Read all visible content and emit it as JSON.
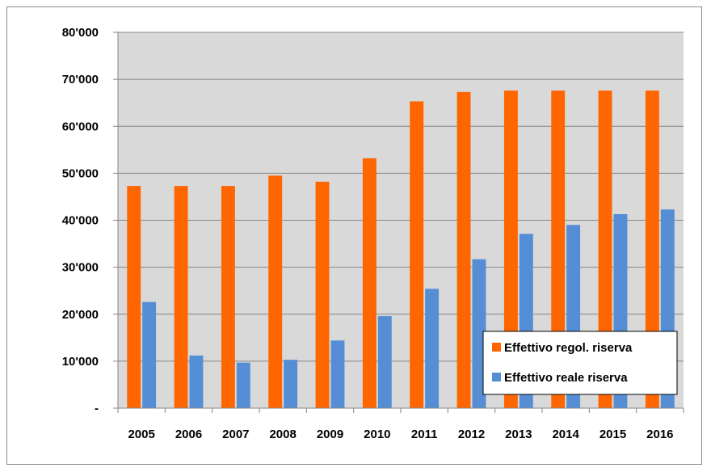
{
  "chart_data": {
    "type": "bar",
    "categories": [
      "2005",
      "2006",
      "2007",
      "2008",
      "2009",
      "2010",
      "2011",
      "2012",
      "2013",
      "2014",
      "2015",
      "2016"
    ],
    "series": [
      {
        "name": "Effettivo regol. riserva",
        "color": "#ff6600",
        "values": [
          47300,
          47300,
          47300,
          49500,
          48200,
          53200,
          65300,
          67300,
          67600,
          67600,
          67600,
          67600
        ]
      },
      {
        "name": "Effettivo reale riserva",
        "color": "#558ed5",
        "values": [
          22600,
          11200,
          9700,
          10300,
          14400,
          19600,
          25400,
          31700,
          37100,
          39000,
          41300,
          42300
        ]
      }
    ],
    "ylim": [
      0,
      80000
    ],
    "yticks": [
      0,
      10000,
      20000,
      30000,
      40000,
      50000,
      60000,
      70000,
      80000
    ],
    "ytick_labels": [
      "-",
      "10'000",
      "20'000",
      "30'000",
      "40'000",
      "50'000",
      "60'000",
      "70'000",
      "80'000"
    ],
    "grid": true,
    "plot_background": "#d9d9d9",
    "legend_position": "bottom-right",
    "title": "",
    "xlabel": "",
    "ylabel": ""
  }
}
